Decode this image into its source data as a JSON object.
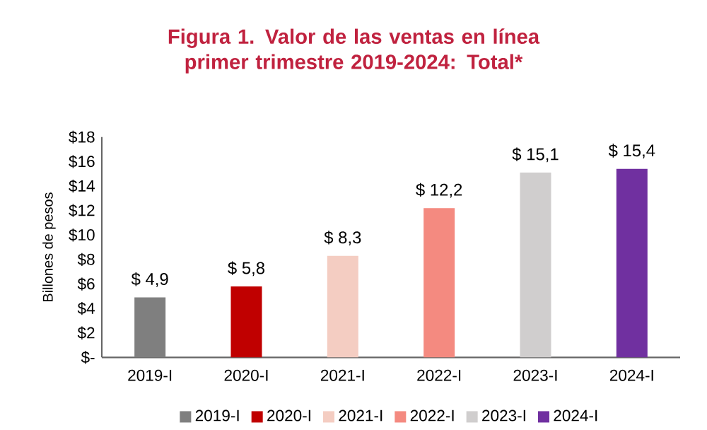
{
  "chart_data": {
    "type": "bar",
    "title": "Figura 1. Valor de las ventas en línea primer trimestre 2019-2024: Total*",
    "ylabel": "Billones de pesos",
    "categories": [
      "2019-I",
      "2020-I",
      "2021-I",
      "2022-I",
      "2023-I",
      "2024-I"
    ],
    "series": [
      {
        "name": "2019-I",
        "color": "#7f7f7f",
        "values": [
          4.9,
          null,
          null,
          null,
          null,
          null
        ],
        "value_labels": [
          "$ 4,9",
          null,
          null,
          null,
          null,
          null
        ]
      },
      {
        "name": "2020-I",
        "color": "#c00000",
        "values": [
          null,
          5.8,
          null,
          null,
          null,
          null
        ],
        "value_labels": [
          null,
          "$ 5,8",
          null,
          null,
          null,
          null
        ]
      },
      {
        "name": "2021-I",
        "color": "#f4cdc2",
        "values": [
          null,
          null,
          8.3,
          null,
          null,
          null
        ],
        "value_labels": [
          null,
          null,
          "$ 8,3",
          null,
          null,
          null
        ]
      },
      {
        "name": "2022-I",
        "color": "#f48a80",
        "values": [
          null,
          null,
          null,
          12.2,
          null,
          null
        ],
        "value_labels": [
          null,
          null,
          null,
          "$ 12,2",
          null,
          null
        ]
      },
      {
        "name": "2023-I",
        "color": "#d0cece",
        "values": [
          null,
          null,
          null,
          null,
          15.1,
          null
        ],
        "value_labels": [
          null,
          null,
          null,
          null,
          "$ 15,1",
          null
        ]
      },
      {
        "name": "2024-I",
        "color": "#7030a0",
        "values": [
          null,
          null,
          null,
          null,
          null,
          15.4
        ],
        "value_labels": [
          null,
          null,
          null,
          null,
          null,
          "$ 15,4"
        ]
      }
    ],
    "ylim": [
      0,
      18
    ],
    "yticks": [
      {
        "value": 0,
        "label": "$-"
      },
      {
        "value": 2,
        "label": "$2"
      },
      {
        "value": 4,
        "label": "$4"
      },
      {
        "value": 6,
        "label": "$6"
      },
      {
        "value": 8,
        "label": "$8"
      },
      {
        "value": 10,
        "label": "$10"
      },
      {
        "value": 12,
        "label": "$12"
      },
      {
        "value": 14,
        "label": "$14"
      },
      {
        "value": 16,
        "label": "$16"
      },
      {
        "value": 18,
        "label": "$18"
      }
    ],
    "legend": "bottom"
  }
}
